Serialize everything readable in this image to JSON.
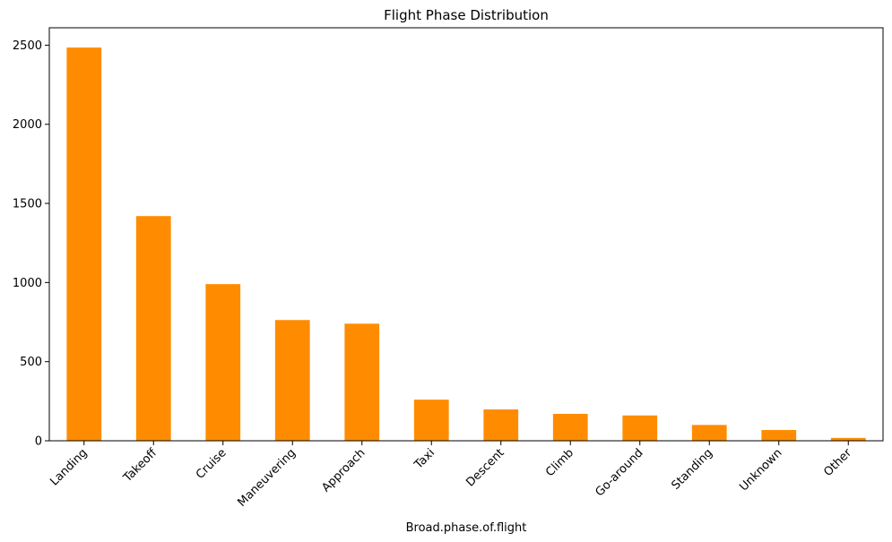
{
  "chart_data": {
    "type": "bar",
    "title": "Flight Phase Distribution",
    "xlabel": "Broad.phase.of.flight",
    "ylabel": "",
    "categories": [
      "Landing",
      "Takeoff",
      "Cruise",
      "Maneuvering",
      "Approach",
      "Taxi",
      "Descent",
      "Climb",
      "Go-around",
      "Standing",
      "Unknown",
      "Other"
    ],
    "values": [
      2485,
      1420,
      990,
      763,
      740,
      260,
      198,
      170,
      160,
      100,
      68,
      18
    ],
    "yticks": [
      0,
      500,
      1000,
      1500,
      2000,
      2500
    ],
    "ylim": [
      0,
      2610
    ],
    "bar_color": "#ff8c00",
    "grid": false,
    "legend": "none"
  }
}
